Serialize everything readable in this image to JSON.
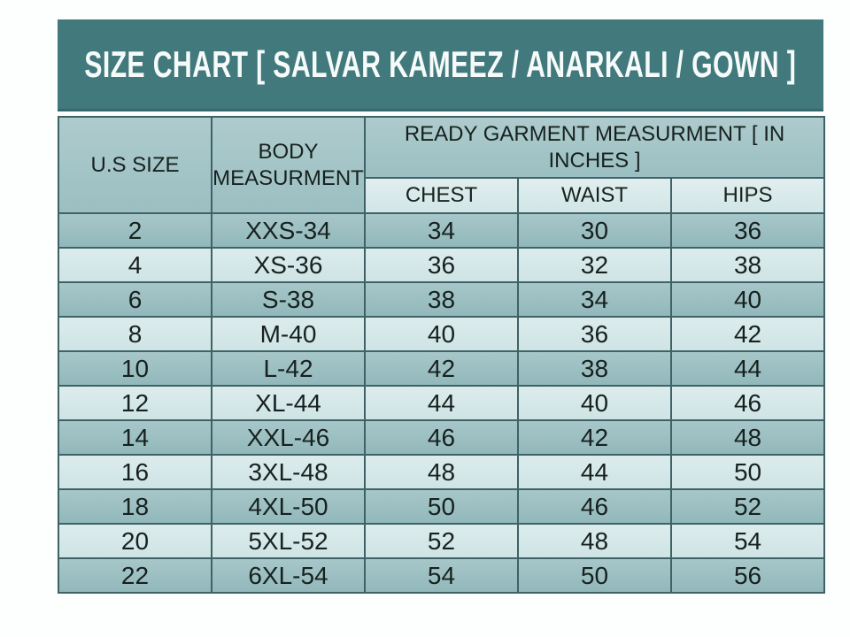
{
  "title": "SIZE CHART [ SALVAR KAMEEZ / ANARKALI / GOWN ]",
  "colors": {
    "title_bar_bg": "#41797d",
    "title_text": "#ffffff",
    "row_dark": "#9dc0c3",
    "row_light": "#d7e9ea",
    "header_mid": "#a4c5c7",
    "header_light": "#dcebeb",
    "cell_border": "#3e6266",
    "page_bg": "#ffffff"
  },
  "table": {
    "header": {
      "us_size": "U.S SIZE",
      "body_measurement": "BODY MEASURMENT",
      "ready_garment": "READY GARMENT MEASURMENT [ IN INCHES ]",
      "sub_columns": [
        "CHEST",
        "WAIST",
        "HIPS"
      ]
    },
    "rows": [
      [
        "2",
        "XXS-34",
        "34",
        "30",
        "36"
      ],
      [
        "4",
        "XS-36",
        "36",
        "32",
        "38"
      ],
      [
        "6",
        "S-38",
        "38",
        "34",
        "40"
      ],
      [
        "8",
        "M-40",
        "40",
        "36",
        "42"
      ],
      [
        "10",
        "L-42",
        "42",
        "38",
        "44"
      ],
      [
        "12",
        "XL-44",
        "44",
        "40",
        "46"
      ],
      [
        "14",
        "XXL-46",
        "46",
        "42",
        "48"
      ],
      [
        "16",
        "3XL-48",
        "48",
        "44",
        "50"
      ],
      [
        "18",
        "4XL-50",
        "50",
        "46",
        "52"
      ],
      [
        "20",
        "5XL-52",
        "52",
        "48",
        "54"
      ],
      [
        "22",
        "6XL-54",
        "54",
        "50",
        "56"
      ]
    ]
  }
}
